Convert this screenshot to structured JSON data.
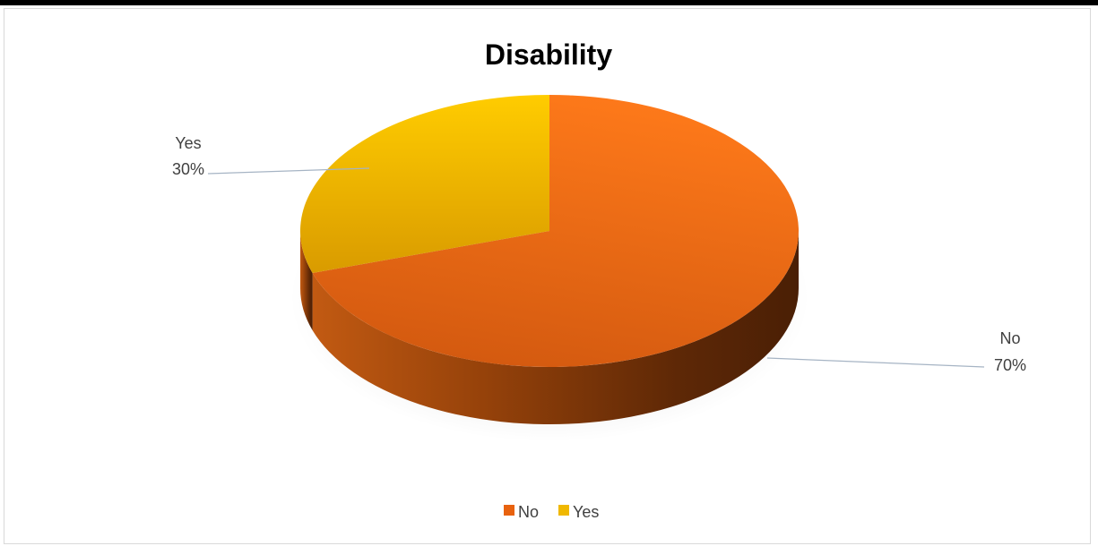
{
  "chart_data": {
    "type": "pie",
    "title": "Disability",
    "categories": [
      "No",
      "Yes"
    ],
    "values": [
      70,
      30
    ],
    "slice_labels": [
      "70%",
      "30%"
    ],
    "colors": [
      "#e8620f",
      "#f0b800"
    ],
    "legend": [
      "No",
      "Yes"
    ],
    "legend_position": "bottom"
  }
}
